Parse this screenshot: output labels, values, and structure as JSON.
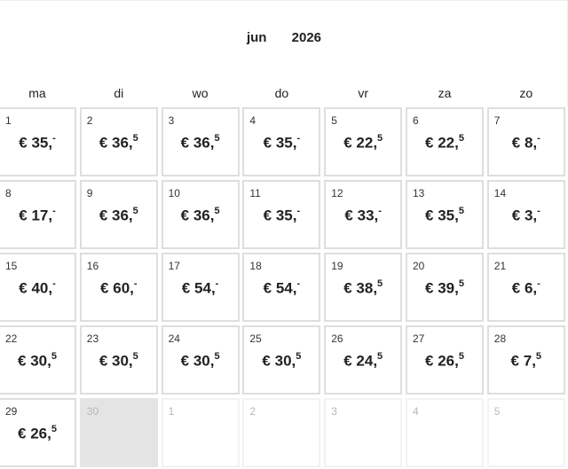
{
  "header": {
    "month": "jun",
    "year": "2026"
  },
  "weekdays": [
    "ma",
    "di",
    "wo",
    "do",
    "vr",
    "za",
    "zo"
  ],
  "currency": "€",
  "weeks": [
    [
      {
        "day": "1",
        "euros": "35,",
        "cents": "-"
      },
      {
        "day": "2",
        "euros": "36,",
        "cents": "5"
      },
      {
        "day": "3",
        "euros": "36,",
        "cents": "5"
      },
      {
        "day": "4",
        "euros": "35,",
        "cents": "-"
      },
      {
        "day": "5",
        "euros": "22,",
        "cents": "5"
      },
      {
        "day": "6",
        "euros": "22,",
        "cents": "5"
      },
      {
        "day": "7",
        "euros": "8,",
        "cents": "-"
      }
    ],
    [
      {
        "day": "8",
        "euros": "17,",
        "cents": "-"
      },
      {
        "day": "9",
        "euros": "36,",
        "cents": "5"
      },
      {
        "day": "10",
        "euros": "36,",
        "cents": "5"
      },
      {
        "day": "11",
        "euros": "35,",
        "cents": "-"
      },
      {
        "day": "12",
        "euros": "33,",
        "cents": "-"
      },
      {
        "day": "13",
        "euros": "35,",
        "cents": "5"
      },
      {
        "day": "14",
        "euros": "3,",
        "cents": "-"
      }
    ],
    [
      {
        "day": "15",
        "euros": "40,",
        "cents": "-"
      },
      {
        "day": "16",
        "euros": "60,",
        "cents": "-"
      },
      {
        "day": "17",
        "euros": "54,",
        "cents": "-"
      },
      {
        "day": "18",
        "euros": "54,",
        "cents": "-"
      },
      {
        "day": "19",
        "euros": "38,",
        "cents": "5"
      },
      {
        "day": "20",
        "euros": "39,",
        "cents": "5"
      },
      {
        "day": "21",
        "euros": "6,",
        "cents": "-"
      }
    ],
    [
      {
        "day": "22",
        "euros": "30,",
        "cents": "5"
      },
      {
        "day": "23",
        "euros": "30,",
        "cents": "5"
      },
      {
        "day": "24",
        "euros": "30,",
        "cents": "5"
      },
      {
        "day": "25",
        "euros": "30,",
        "cents": "5"
      },
      {
        "day": "26",
        "euros": "24,",
        "cents": "5"
      },
      {
        "day": "27",
        "euros": "26,",
        "cents": "5"
      },
      {
        "day": "28",
        "euros": "7,",
        "cents": "5"
      }
    ],
    [
      {
        "day": "29",
        "euros": "26,",
        "cents": "5"
      },
      {
        "day": "30",
        "state": "disabled"
      },
      {
        "day": "1",
        "state": "outside"
      },
      {
        "day": "2",
        "state": "outside"
      },
      {
        "day": "3",
        "state": "outside"
      },
      {
        "day": "4",
        "state": "outside"
      },
      {
        "day": "5",
        "state": "outside"
      }
    ]
  ]
}
